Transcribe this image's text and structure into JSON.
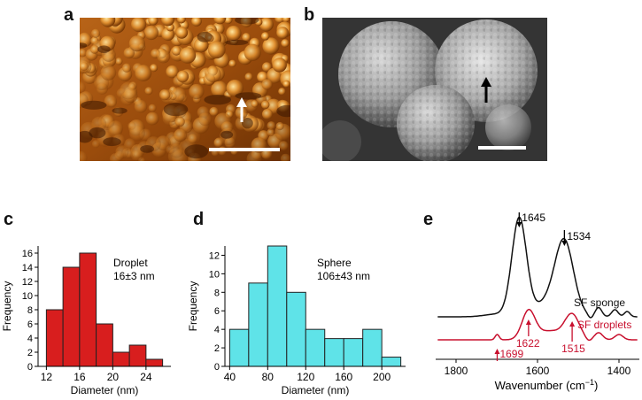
{
  "panels": {
    "a": {
      "letter": "a"
    },
    "b": {
      "letter": "b"
    },
    "c": {
      "letter": "c"
    },
    "d": {
      "letter": "d"
    },
    "e": {
      "letter": "e"
    }
  },
  "colors": {
    "afm_dark": "#5a2a00",
    "afm_mid": "#c9731b",
    "afm_light": "#ffe6a0",
    "sem_bg": "#3a3a3a",
    "sem_sphere": "#a8a8a8",
    "bar_red": "#d81e1e",
    "bar_cyan": "#5fe3e8",
    "sponge_line": "#111111",
    "droplet_line": "#c8102e"
  },
  "chart_data": [
    {
      "id": "c",
      "type": "bar",
      "x": [
        12,
        16,
        18,
        20,
        22,
        24,
        26
      ],
      "bin_edges": [
        12,
        14,
        16,
        18,
        20,
        22,
        24,
        26
      ],
      "values": [
        8,
        14,
        16,
        6,
        2,
        3,
        1
      ],
      "xlabel": "Diameter (nm)",
      "ylabel": "Frequency",
      "xlim": [
        11,
        27
      ],
      "ylim": [
        0,
        17
      ],
      "xticks": [
        12,
        16,
        20,
        24
      ],
      "yticks": [
        0,
        2,
        4,
        6,
        8,
        10,
        12,
        14,
        16
      ],
      "annotation": [
        "Droplet",
        "16±3 nm"
      ]
    },
    {
      "id": "d",
      "type": "bar",
      "bin_edges": [
        40,
        60,
        80,
        100,
        120,
        140,
        160,
        180,
        200,
        220
      ],
      "values": [
        4,
        9,
        13,
        8,
        4,
        3,
        3,
        4,
        1
      ],
      "xlabel": "Diameter (nm)",
      "ylabel": "Frequency",
      "xlim": [
        35,
        225
      ],
      "ylim": [
        0,
        13
      ],
      "xticks": [
        40,
        80,
        120,
        160,
        200
      ],
      "yticks": [
        0,
        2,
        4,
        6,
        8,
        10,
        12
      ],
      "annotation": [
        "Sphere",
        "106±43 nm"
      ]
    },
    {
      "id": "e",
      "type": "line",
      "xlabel": "Wavenumber (cm",
      "xlabel_sup": "−1",
      "xlabel_end": ")",
      "xlim": [
        1850,
        1350
      ],
      "xticks": [
        1800,
        1600,
        1400
      ],
      "series": [
        {
          "name": "SF sponge",
          "peaks": [
            1645,
            1534
          ]
        },
        {
          "name": "SF droplets",
          "peaks": [
            1699,
            1622,
            1515
          ]
        }
      ],
      "peak_labels": {
        "sponge": [
          "1645",
          "1534"
        ],
        "droplets": [
          "1699",
          "1622",
          "1515"
        ]
      }
    }
  ]
}
